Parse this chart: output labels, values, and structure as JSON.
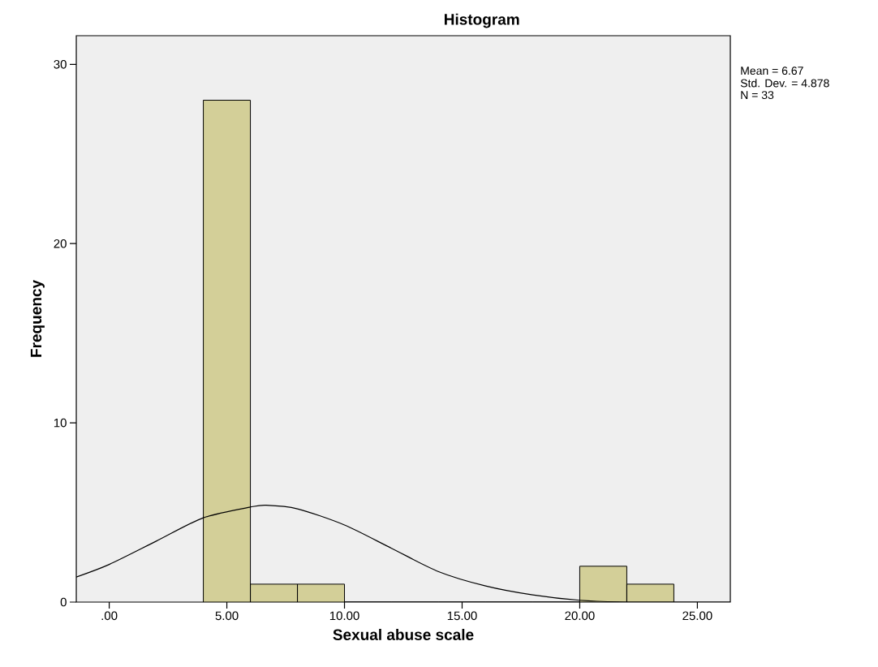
{
  "chart_data": {
    "type": "histogram",
    "title": "Histogram",
    "xlabel": "Sexual abuse scale",
    "ylabel": "Frequency",
    "series": [
      {
        "color": "#d3cf98",
        "bins": [
          4,
          6,
          8,
          10,
          12,
          14,
          16,
          18,
          20,
          22,
          24
        ],
        "values": [
          28,
          1,
          1,
          0,
          0,
          0,
          0,
          0,
          2,
          1
        ]
      },
      {
        "type": "line",
        "color": "#000000",
        "x": [
          -1.4,
          0,
          2,
          4,
          6,
          6.67,
          8,
          10,
          12,
          14,
          16,
          18,
          20,
          22,
          24,
          26.4
        ],
        "values": [
          1.4,
          2.1,
          3.4,
          4.7,
          5.3,
          5.4,
          5.2,
          4.3,
          3.0,
          1.7,
          0.9,
          0.4,
          0.1,
          0.0,
          0.0,
          0.0
        ]
      }
    ],
    "xlim": [
      -1.4,
      26.4
    ],
    "ylim": [
      0,
      31.6
    ],
    "xticks": [
      {
        "value": 0,
        "label": ".00"
      },
      {
        "value": 5,
        "label": "5.00"
      },
      {
        "value": 10,
        "label": "10.00"
      },
      {
        "value": 15,
        "label": "15.00"
      },
      {
        "value": 20,
        "label": "20.00"
      },
      {
        "value": 25,
        "label": "25.00"
      }
    ],
    "yticks": [
      0,
      10,
      20,
      30
    ],
    "grid": false,
    "annotations": [
      "Mean = 6.67",
      "Std. Dev. = 4.878",
      "N = 33"
    ]
  }
}
